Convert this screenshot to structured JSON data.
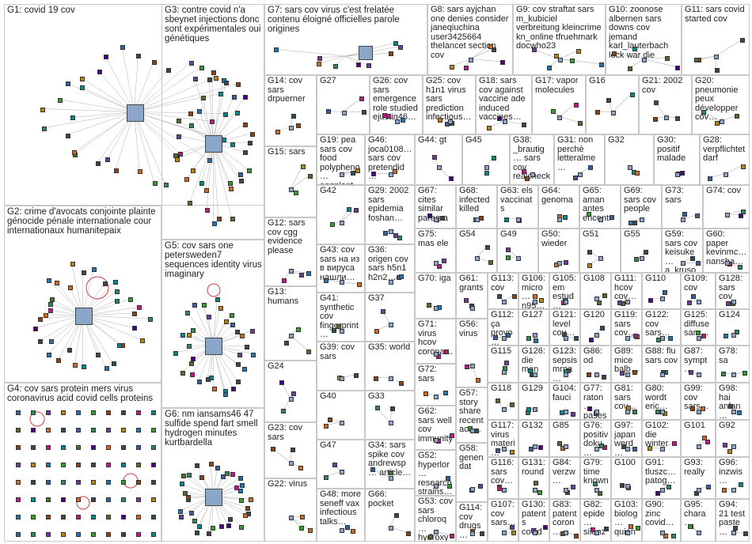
{
  "groups": [
    {
      "id": "G1",
      "label": "G1: covid 19 cov"
    },
    {
      "id": "G2",
      "label": "G2: crime d'avocats conjointe plainte génocide pénale internationale cour internationaux humanitepaix"
    },
    {
      "id": "G3",
      "label": "G3: contre covid n'a sbeynet injections donc sont expérimentales oui génétiques"
    },
    {
      "id": "G4",
      "label": "G4: cov sars protein mers virus coronavirus acid covid cells proteins"
    },
    {
      "id": "G5",
      "label": "G5: cov sars one petersweden7 sequences identity virus imaginary"
    },
    {
      "id": "G6",
      "label": "G6: nm iansams46 47 sulfide spend fart smell hydrogen minutes kurtbardella"
    },
    {
      "id": "G7",
      "label": "G7: sars cov virus c'est frelatée contenu éloigné officielles parole origines"
    },
    {
      "id": "G8",
      "label": "G8: sars ayjchan one denies consider janeqiuchina user3425664 thelancet section cov"
    },
    {
      "id": "G9",
      "label": "G9: cov straftat sars m_kubiciel verbreitung kleincrime kn_online tfruehmark docwho23"
    },
    {
      "id": "G10",
      "label": "G10: zoonose albernen sars downs cov jemand karl_lauterbach lock war die"
    },
    {
      "id": "G11",
      "label": "G11: sars covid started cov"
    },
    {
      "id": "G12",
      "label": "G12: sars cov cgg evidence please"
    },
    {
      "id": "G13",
      "label": "G13: humans"
    },
    {
      "id": "G14",
      "label": "G14: cov sars drpuerner"
    },
    {
      "id": "G15",
      "label": "G15: sars"
    },
    {
      "id": "G16",
      "label": "G16"
    },
    {
      "id": "G17",
      "label": "G17: vapor molecules"
    },
    {
      "id": "G18",
      "label": "G18: sars cov against vaccine ade induced vaccines…"
    },
    {
      "id": "G19",
      "label": "G19: pea sars cov food polypheno… eggplant…"
    },
    {
      "id": "G20",
      "label": "G20: pneumonie peux développer cov…"
    },
    {
      "id": "G21",
      "label": "G21: 2002 cov"
    },
    {
      "id": "G22",
      "label": "G22: virus"
    },
    {
      "id": "G23",
      "label": "G23: cov sars"
    },
    {
      "id": "G24",
      "label": "G24"
    },
    {
      "id": "G25",
      "label": "G25: cov h1n1 virus sars prediction infectious…"
    },
    {
      "id": "G26",
      "label": "G26: cov sars emergence role studied ejustin46…"
    },
    {
      "id": "G27",
      "label": "G27"
    },
    {
      "id": "G28",
      "label": "G28: verpflichtet darf"
    },
    {
      "id": "G29",
      "label": "G29: 2002 sars epidemia foshan…"
    },
    {
      "id": "G30",
      "label": "G30: positif malade"
    },
    {
      "id": "G31",
      "label": "G31: non perchè letteralme…"
    },
    {
      "id": "G32",
      "label": "G32"
    },
    {
      "id": "G33",
      "label": "G33"
    },
    {
      "id": "G34",
      "label": "G34: sars spike cov andrewsp… article…"
    },
    {
      "id": "G35",
      "label": "G35: world"
    },
    {
      "id": "G36",
      "label": "G36: origen cov sars h5n1 h2n2…"
    },
    {
      "id": "G37",
      "label": "G37"
    },
    {
      "id": "G38",
      "label": "G38: _brautig… sars cov realcheck…"
    },
    {
      "id": "G39",
      "label": "G39: cov sars"
    },
    {
      "id": "G40",
      "label": "G40"
    },
    {
      "id": "G41",
      "label": "G41: synthetic cov fingerprint…"
    },
    {
      "id": "G42",
      "label": "G42"
    },
    {
      "id": "G43",
      "label": "G43: cov sars на из в вируса нашли…"
    },
    {
      "id": "G44",
      "label": "G44: gt"
    },
    {
      "id": "G45",
      "label": "G45"
    },
    {
      "id": "G46",
      "label": "G46: joca0108… sars cov pretendid…"
    },
    {
      "id": "G47",
      "label": "G47"
    },
    {
      "id": "G48",
      "label": "G48: more seneff vax infectious talks…"
    },
    {
      "id": "G49",
      "label": "G49"
    },
    {
      "id": "G50",
      "label": "G50: wieder"
    },
    {
      "id": "G51",
      "label": "G51"
    },
    {
      "id": "G52",
      "label": "G52: hyperlor… research strains…"
    },
    {
      "id": "G53",
      "label": "G53: cov sars chloroq… hydroxy…"
    },
    {
      "id": "G54",
      "label": "G54"
    },
    {
      "id": "G55",
      "label": "G55"
    },
    {
      "id": "G56",
      "label": "G56: virus"
    },
    {
      "id": "G57",
      "label": "G57: story share recent acs…"
    },
    {
      "id": "G58",
      "label": "G58: genen dat"
    },
    {
      "id": "G59",
      "label": "G59: sars cov keisuke… a_kruso…"
    },
    {
      "id": "G60",
      "label": "G60: paper kevinmc… nansha…"
    },
    {
      "id": "G61",
      "label": "G61: grants"
    },
    {
      "id": "G62",
      "label": "G62: sars well cov immunity"
    },
    {
      "id": "G63",
      "label": "G63: els vaccinats"
    },
    {
      "id": "G64",
      "label": "G64: genoma"
    },
    {
      "id": "G65",
      "label": "G65: aman antes encontr…"
    },
    {
      "id": "G66",
      "label": "G66: pocket"
    },
    {
      "id": "G67",
      "label": "G67: cites similar paragra…"
    },
    {
      "id": "G68",
      "label": "G68: infected killed"
    },
    {
      "id": "G69",
      "label": "G69: sars cov people"
    },
    {
      "id": "G70",
      "label": "G70: iga"
    },
    {
      "id": "G71",
      "label": "G71: virus hcov corona…"
    },
    {
      "id": "G72",
      "label": "G72: sars"
    },
    {
      "id": "G73",
      "label": "G73: sars"
    },
    {
      "id": "G74",
      "label": "G74: cov"
    },
    {
      "id": "G75",
      "label": "G75: mas ele"
    },
    {
      "id": "G76",
      "label": "G76: positiv doku…"
    },
    {
      "id": "G77",
      "label": "G77: raton… pases…"
    },
    {
      "id": "G78",
      "label": "G78: sa"
    },
    {
      "id": "G79",
      "label": "G79: time known"
    },
    {
      "id": "G80",
      "label": "G80: wordt eric…"
    },
    {
      "id": "G81",
      "label": "G81: sars cov…"
    },
    {
      "id": "G82",
      "label": "G82: epide… silenz…"
    },
    {
      "id": "G83",
      "label": "G83: patent coron…"
    },
    {
      "id": "G84",
      "label": "G84: verzw…"
    },
    {
      "id": "G85",
      "label": "G85"
    },
    {
      "id": "G86",
      "label": "G86: od"
    },
    {
      "id": "G87",
      "label": "G87: sympt…"
    },
    {
      "id": "G88",
      "label": "G88: flu sars cov"
    },
    {
      "id": "G89",
      "label": "G89: mice balb…"
    },
    {
      "id": "G90",
      "label": "G90: zinc covid…"
    },
    {
      "id": "G91",
      "label": "G91: tluszc… patog…"
    },
    {
      "id": "G92",
      "label": "G92"
    },
    {
      "id": "G93",
      "label": "G93: really"
    },
    {
      "id": "G94",
      "label": "G94: 21 test paste…"
    },
    {
      "id": "G95",
      "label": "G95: chara…"
    },
    {
      "id": "G96",
      "label": "G96: inzwis…"
    },
    {
      "id": "G97",
      "label": "G97: japan werd…"
    },
    {
      "id": "G98",
      "label": "G98: hai anfan…"
    },
    {
      "id": "G99",
      "label": "G99: cov sars…"
    },
    {
      "id": "G100",
      "label": "G100"
    },
    {
      "id": "G101",
      "label": "G101"
    },
    {
      "id": "G102",
      "label": "G102: die winter"
    },
    {
      "id": "G103",
      "label": "G103: biolog… quien…"
    },
    {
      "id": "G104",
      "label": "G104: fauci"
    },
    {
      "id": "G105",
      "label": "G105: em estud…"
    },
    {
      "id": "G106",
      "label": "G106: micro… n95…"
    },
    {
      "id": "G107",
      "label": "G107: cov sars…"
    },
    {
      "id": "G108",
      "label": "G108"
    },
    {
      "id": "G109",
      "label": "G109: cov"
    },
    {
      "id": "G110",
      "label": "G110"
    },
    {
      "id": "G111",
      "label": "G111: hcov cov…"
    },
    {
      "id": "G112",
      "label": "G112: ça provo…"
    },
    {
      "id": "G113",
      "label": "G113: cov"
    },
    {
      "id": "G114",
      "label": "G114: cov drugs…"
    },
    {
      "id": "G115",
      "label": "G115"
    },
    {
      "id": "G116",
      "label": "G116: sars cov…"
    },
    {
      "id": "G117",
      "label": "G117: virus materi…"
    },
    {
      "id": "G118",
      "label": "G118"
    },
    {
      "id": "G119",
      "label": "G119: sars cov…"
    },
    {
      "id": "G120",
      "label": "G120"
    },
    {
      "id": "G121",
      "label": "G121: level cov…"
    },
    {
      "id": "G122",
      "label": "G122: cov sars…"
    },
    {
      "id": "G123",
      "label": "G123: sepsis mrna…"
    },
    {
      "id": "G124",
      "label": "G124"
    },
    {
      "id": "G125",
      "label": "G125: diffuse sars…"
    },
    {
      "id": "G126",
      "label": "G126: die man"
    },
    {
      "id": "G127",
      "label": "G127"
    },
    {
      "id": "G128",
      "label": "G128: sars cov"
    },
    {
      "id": "G129",
      "label": "G129"
    },
    {
      "id": "G130",
      "label": "G130: patents covid…"
    },
    {
      "id": "G131",
      "label": "G131: round"
    },
    {
      "id": "G132",
      "label": "G132"
    }
  ]
}
